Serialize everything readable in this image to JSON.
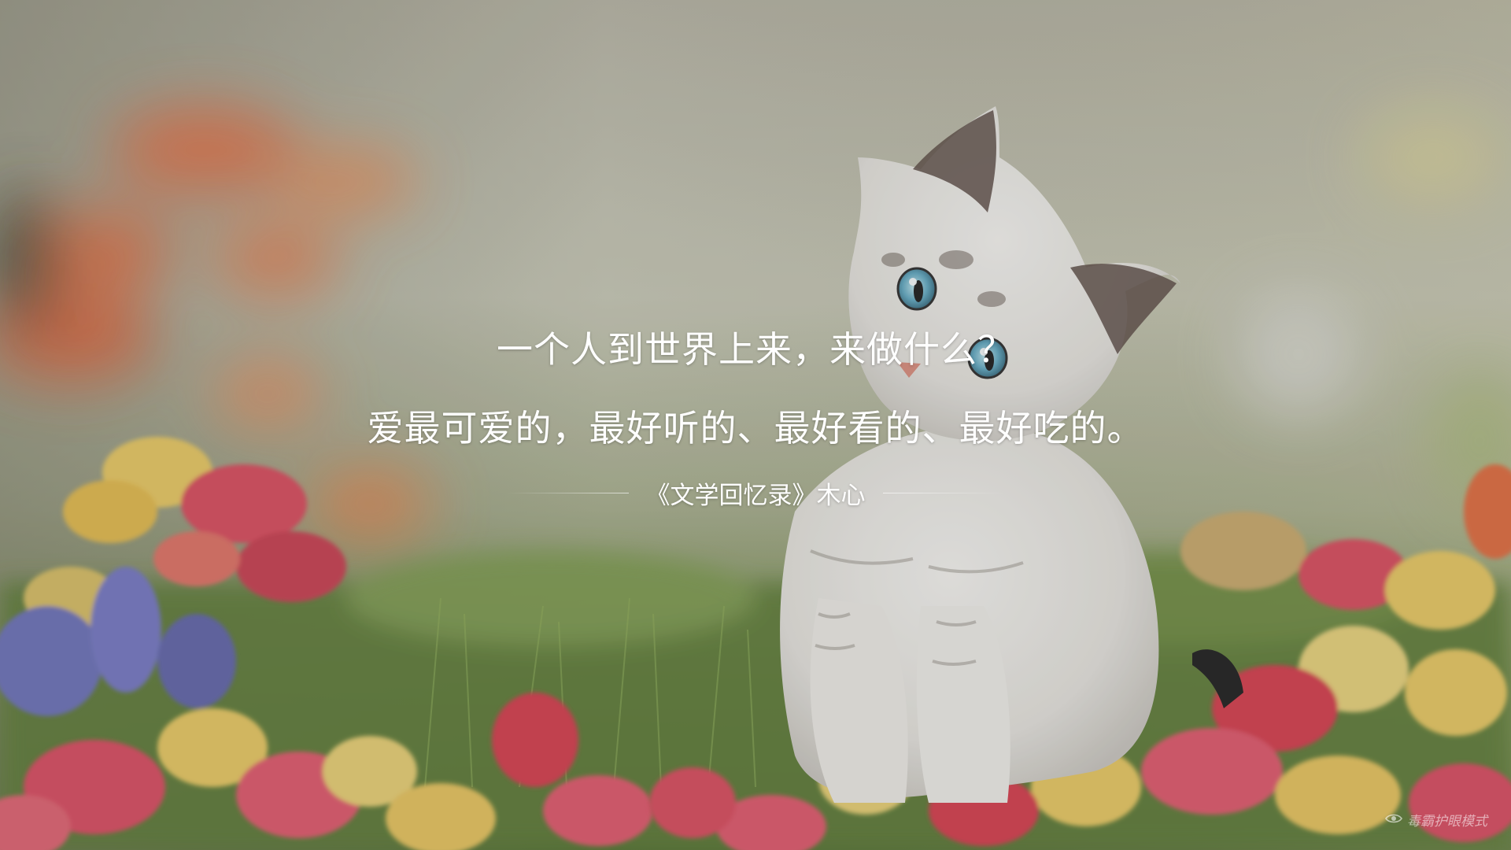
{
  "quote": {
    "line1": "一个人到世界上来，来做什么？",
    "line2": "爱最可爱的，最好听的、最好看的、最好吃的。",
    "source": "《文学回忆录》木心"
  },
  "eye_protection": {
    "label": "毒霸护眼模式",
    "icon": "eye-icon"
  },
  "colors": {
    "text": "#ffffff",
    "sky": "#c9c9b8",
    "grass": "#6f8a45",
    "flower_red": "#e0566a",
    "flower_yellow": "#e8c860",
    "flower_orange": "#e46b3c",
    "lavender": "#6a6fb8",
    "kitten": "#ecebe7"
  }
}
